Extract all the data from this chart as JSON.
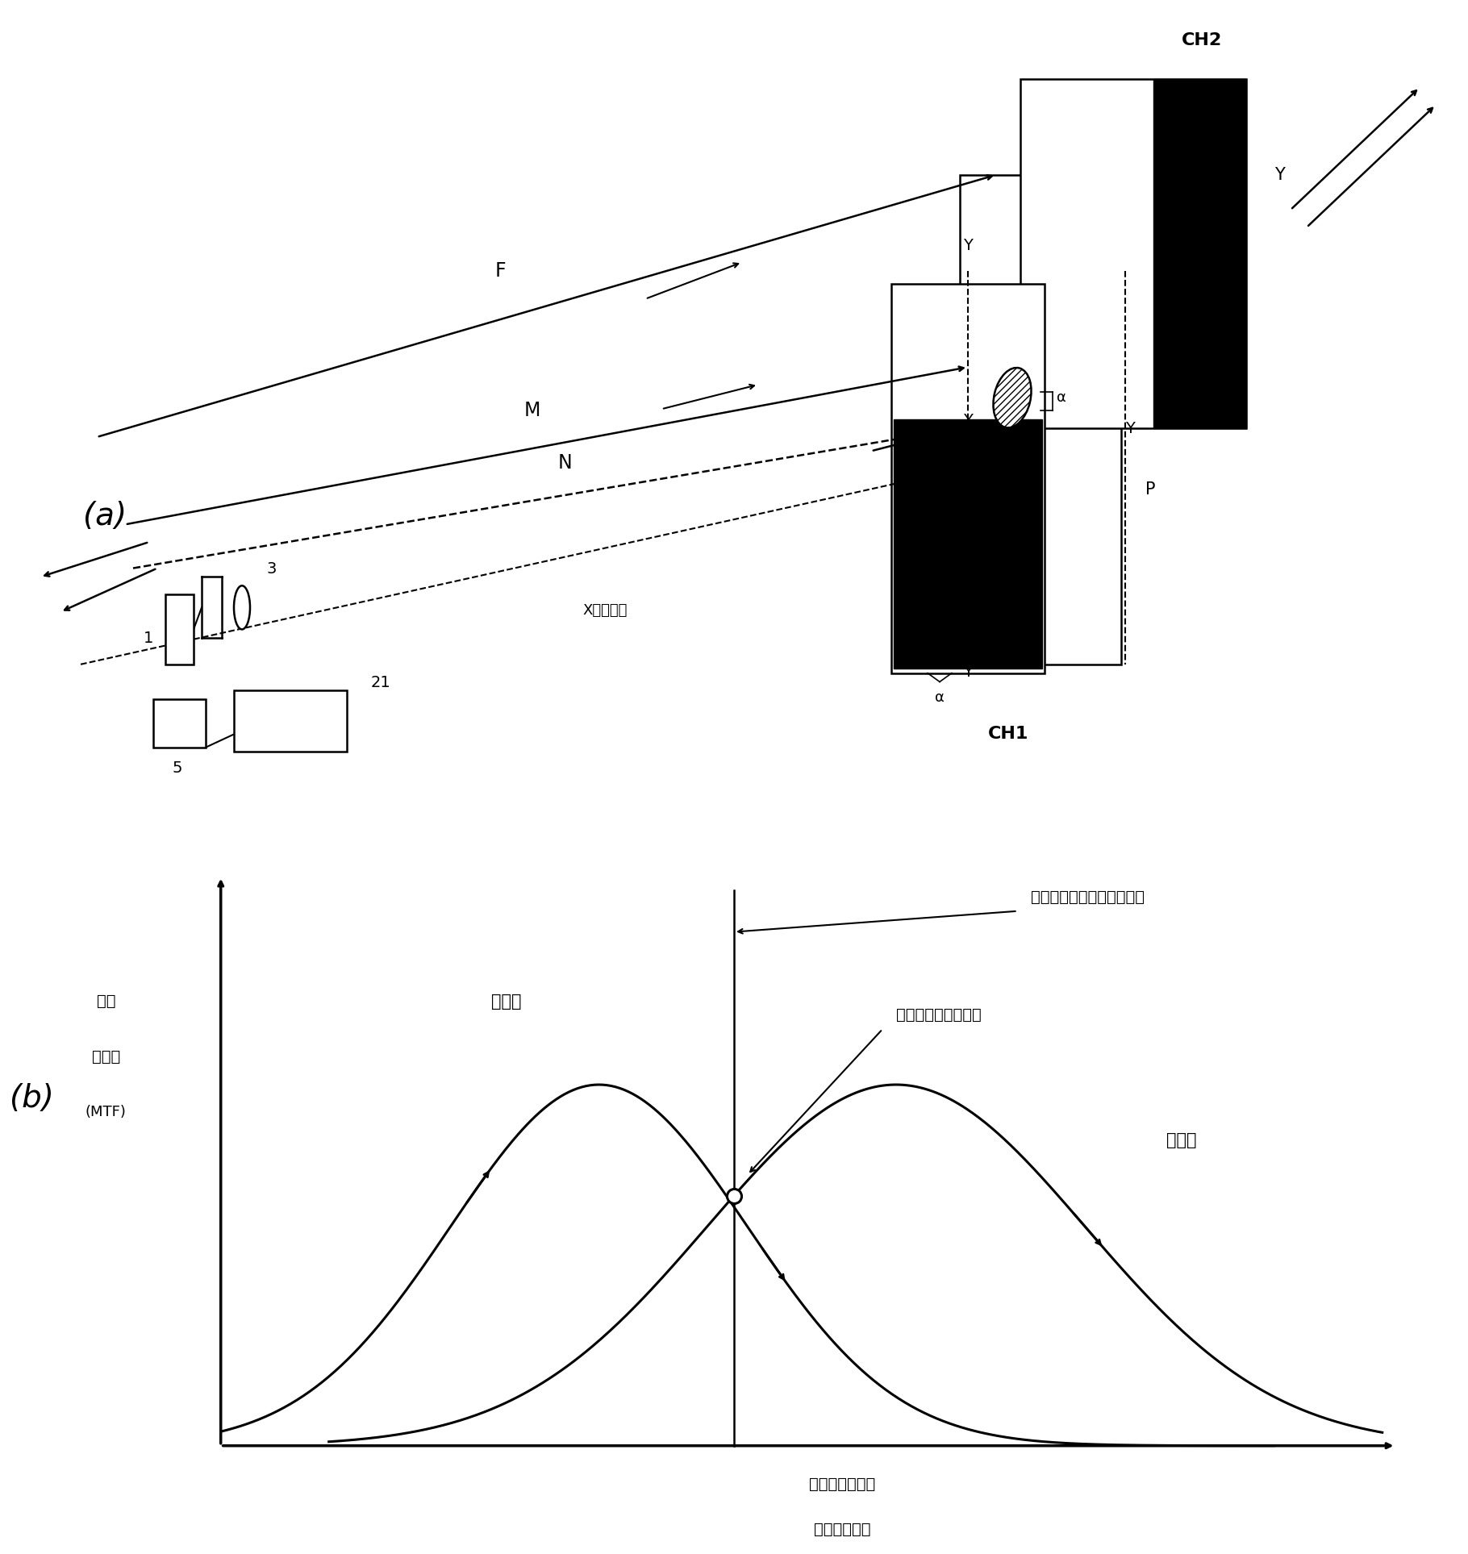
{
  "fig_width": 18.2,
  "fig_height": 19.27,
  "bg_color": "#ffffff",
  "part_a_label": "(a)",
  "part_b_label": "(b)",
  "ch1_label": "CH1",
  "ch2_label": "CH2",
  "F_label": "F",
  "M_label": "M",
  "N_label": "N",
  "P_label": "P",
  "Y_label": "Y",
  "alpha_label": "α",
  "X_label": "X（光轴）",
  "lens_label_1": "1",
  "lens_label_3": "3",
  "lens_label_5": "5",
  "lens_label_21": "21",
  "b_ylabel_line1": "焦点",
  "b_ylabel_line2": "评价値",
  "b_ylabel_line3": "(MTF)",
  "b_xlabel_line1": "摄像镜头的位置",
  "b_xlabel_line2": "（焦点位置）",
  "curve1_label": "第一图",
  "curve2_label": "第二图",
  "annotation1": "目标位置处的焦点调节位置",
  "annotation2": "焦点评价値的一致点"
}
